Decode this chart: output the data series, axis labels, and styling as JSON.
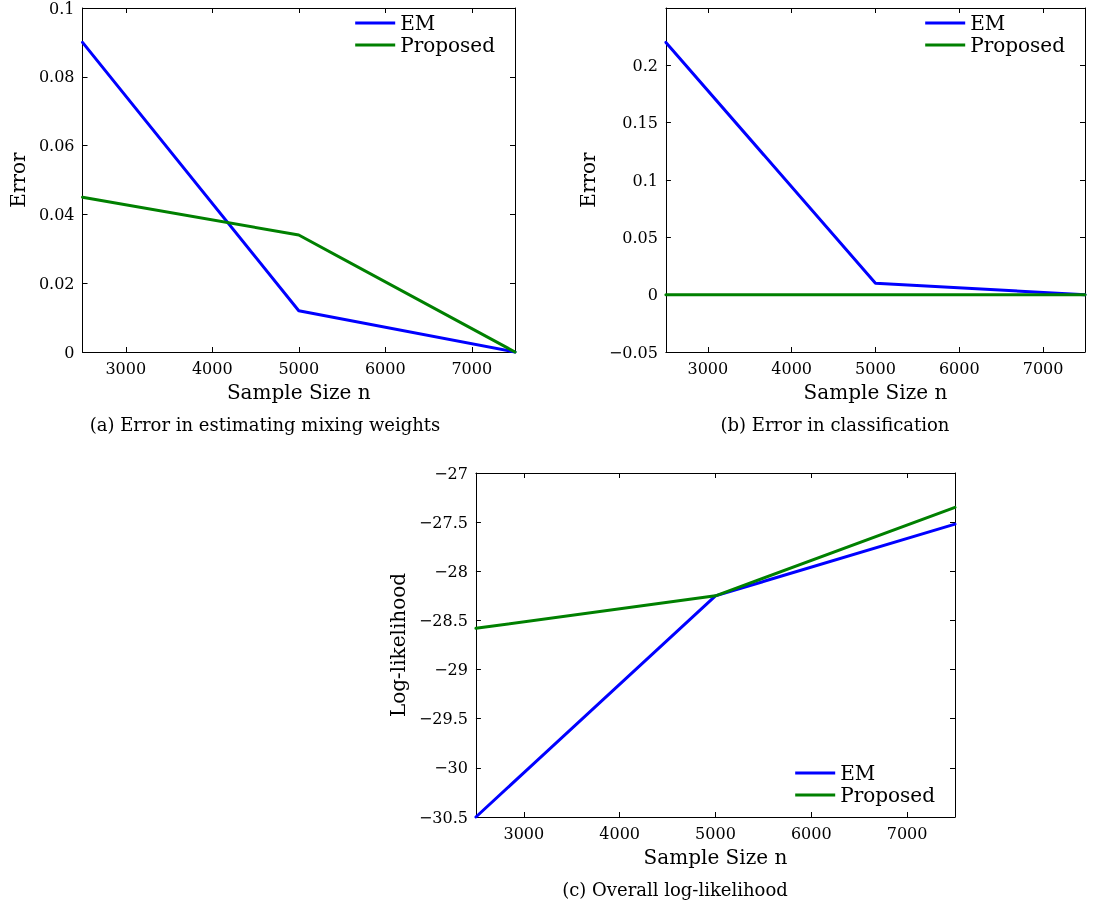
{
  "chart_data": [
    {
      "type": "line",
      "title": "(a) Error in estimating mixing weights",
      "xlabel": "Sample Size n",
      "ylabel": "Error",
      "x": [
        2500,
        5000,
        7500
      ],
      "xlim": [
        2500,
        7500
      ],
      "xticks": [
        3000,
        4000,
        5000,
        6000,
        7000
      ],
      "ylim": [
        0,
        0.1
      ],
      "yticks": [
        0,
        0.02,
        0.04,
        0.06,
        0.08,
        0.1
      ],
      "legend": "top right",
      "marker": "none",
      "line_style": "solid",
      "series": [
        {
          "name": "EM",
          "color": "#0000ff",
          "values": [
            0.09,
            0.012,
            0
          ]
        },
        {
          "name": "Proposed",
          "color": "#008000",
          "values": [
            0.045,
            0.034,
            0
          ]
        }
      ]
    },
    {
      "type": "line",
      "title": "(b) Error in classification",
      "xlabel": "Sample Size n",
      "ylabel": "Error",
      "x": [
        2500,
        5000,
        7500
      ],
      "xlim": [
        2500,
        7500
      ],
      "xticks": [
        3000,
        4000,
        5000,
        6000,
        7000
      ],
      "ylim": [
        -0.05,
        0.25
      ],
      "yticks": [
        -0.05,
        0,
        0.05,
        0.1,
        0.15,
        0.2,
        {
          "value": 0.25,
          "label": null
        }
      ],
      "legend": "top right",
      "marker": "none",
      "line_style": "solid",
      "series": [
        {
          "name": "EM",
          "color": "#0000ff",
          "values": [
            0.22,
            0.01,
            0
          ]
        },
        {
          "name": "Proposed",
          "color": "#008000",
          "values": [
            0,
            0,
            0
          ]
        }
      ]
    },
    {
      "type": "line",
      "title": "(c) Overall log-likelihood",
      "xlabel": "Sample Size n",
      "ylabel": "Log-likelihood",
      "x": [
        2500,
        5000,
        7500
      ],
      "xlim": [
        2500,
        7500
      ],
      "xticks": [
        3000,
        4000,
        5000,
        6000,
        7000
      ],
      "ylim": [
        -30.5,
        -27
      ],
      "yticks": [
        -30.5,
        -30,
        -29.5,
        -29,
        -28.5,
        -28,
        -27.5,
        -27
      ],
      "legend": "bottom right",
      "marker": "none",
      "line_style": "solid",
      "series": [
        {
          "name": "EM",
          "color": "#0000ff",
          "values": [
            -30.5,
            -28.25,
            -27.52
          ]
        },
        {
          "name": "Proposed",
          "color": "#008000",
          "values": [
            -28.58,
            -28.25,
            -27.35
          ]
        }
      ]
    }
  ]
}
